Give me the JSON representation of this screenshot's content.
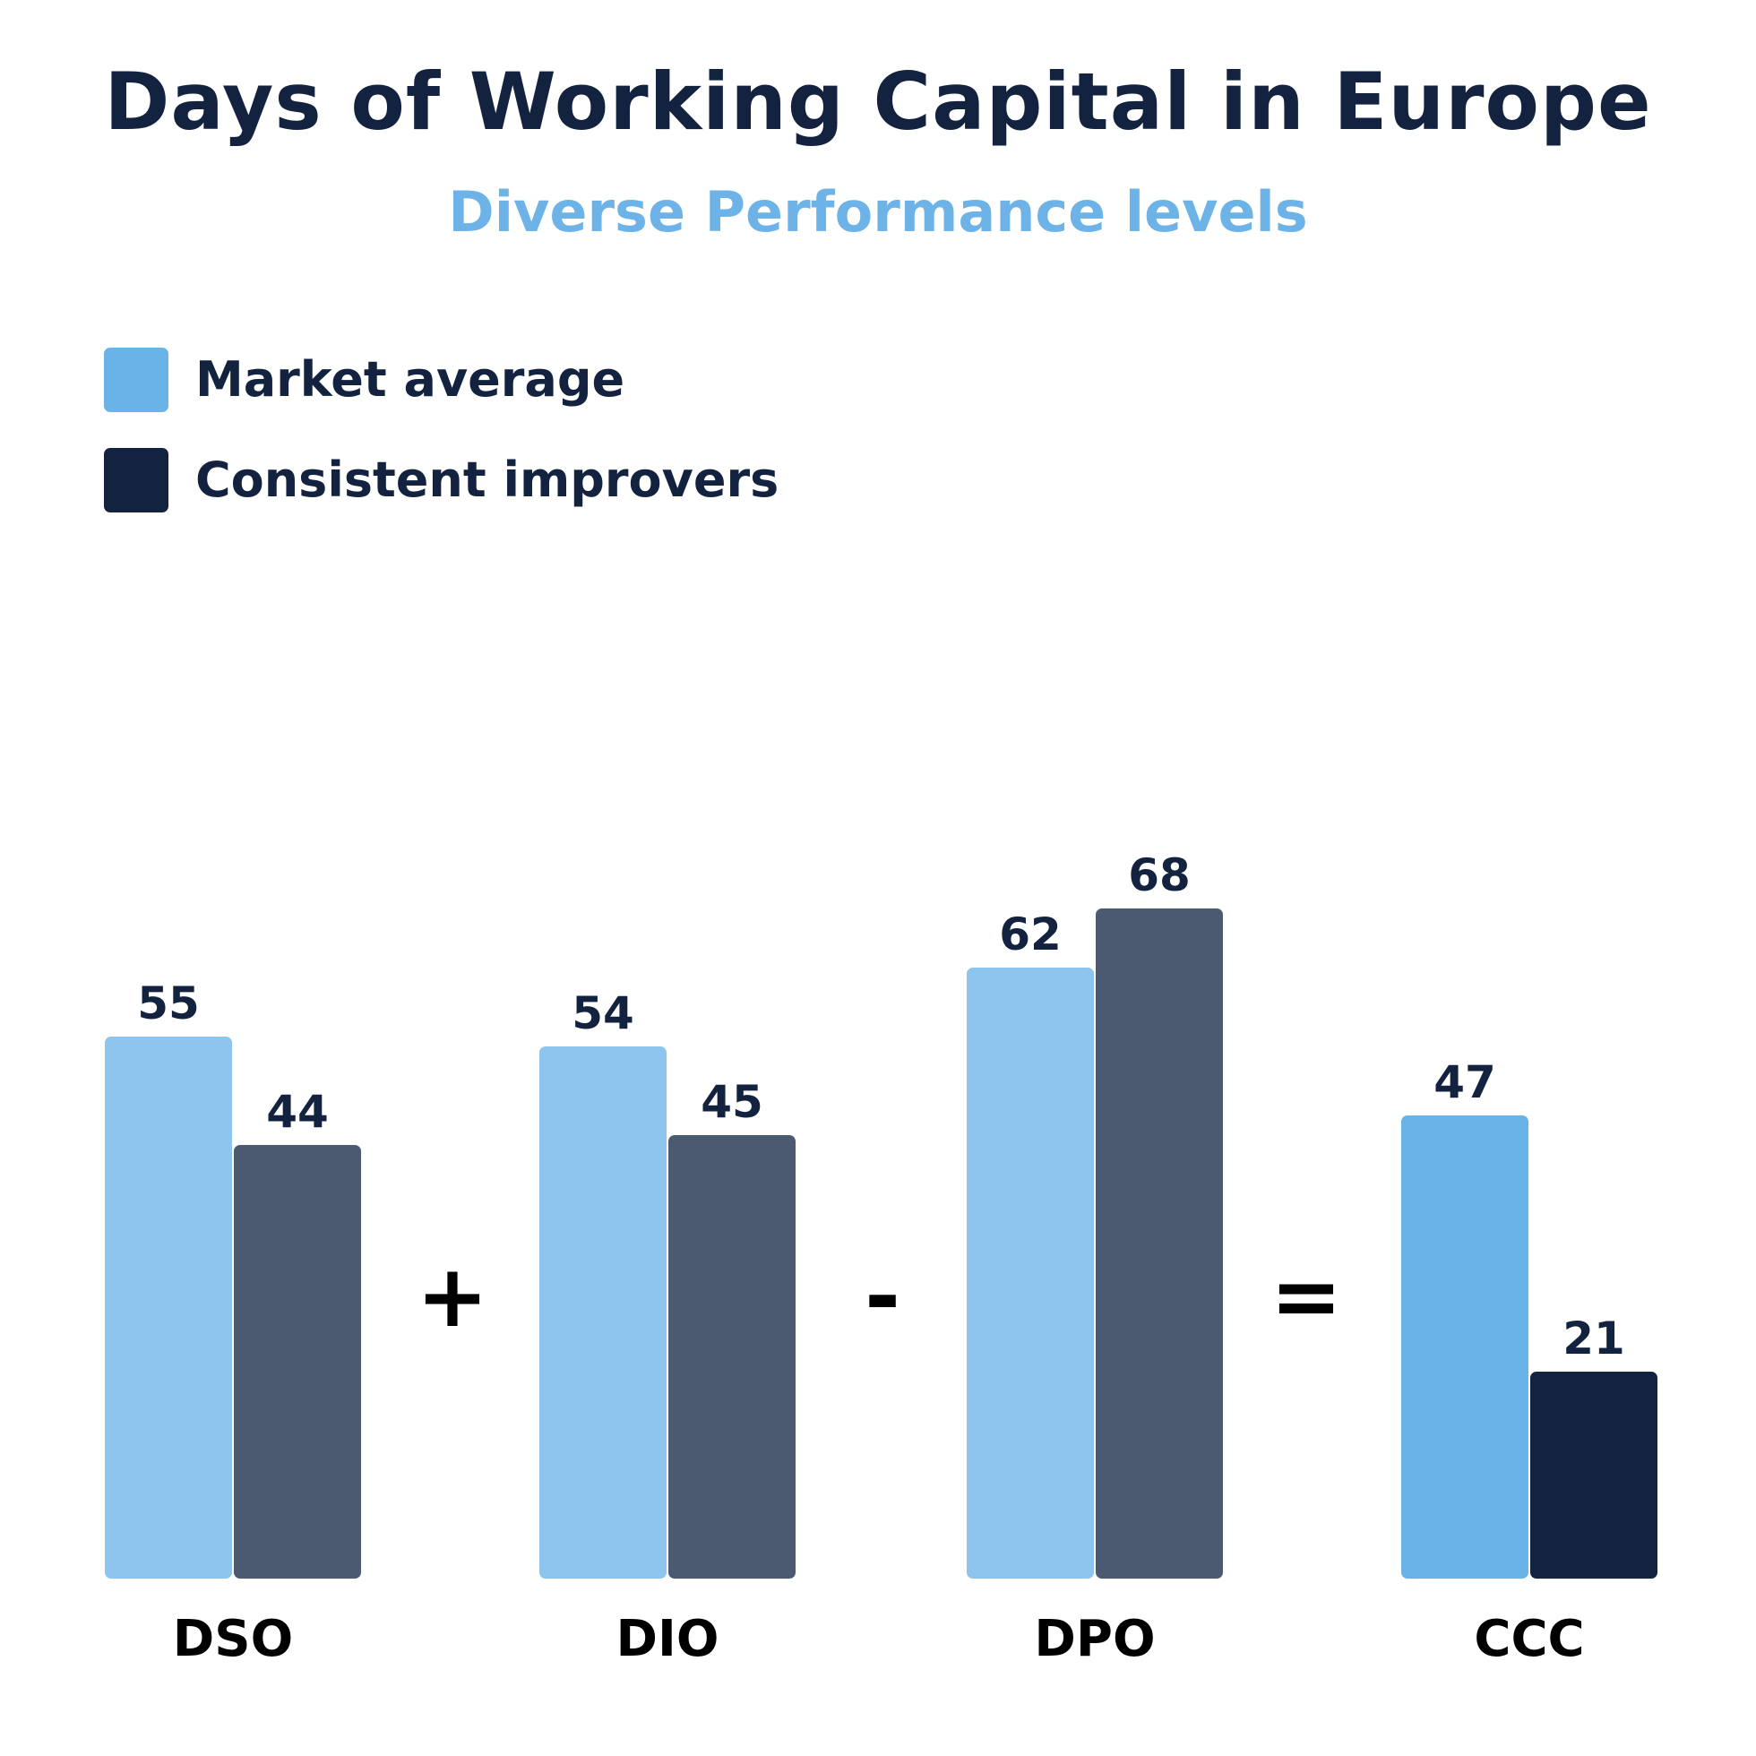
{
  "chart_data": {
    "type": "bar",
    "title": "Days of Working Capital in Europe",
    "subtitle": "Diverse Performance levels",
    "categories": [
      "DSO",
      "DIO",
      "DPO",
      "CCC"
    ],
    "operators": [
      "+",
      "-",
      "="
    ],
    "series": [
      {
        "name": "Market average",
        "values": [
          55,
          54,
          62,
          47
        ]
      },
      {
        "name": "Consistent improvers",
        "values": [
          44,
          45,
          68,
          21
        ]
      }
    ],
    "legend_position": "top-left",
    "grid": false,
    "colors": {
      "legend": [
        "#6ab3e8",
        "#12223f"
      ],
      "bars": [
        [
          "#8ec5ee",
          "#4b5a71"
        ],
        [
          "#8ec5ee",
          "#4b5a71"
        ],
        [
          "#8ec5ee",
          "#4b5a71"
        ],
        [
          "#6ab3e8",
          "#12223f"
        ]
      ]
    }
  }
}
